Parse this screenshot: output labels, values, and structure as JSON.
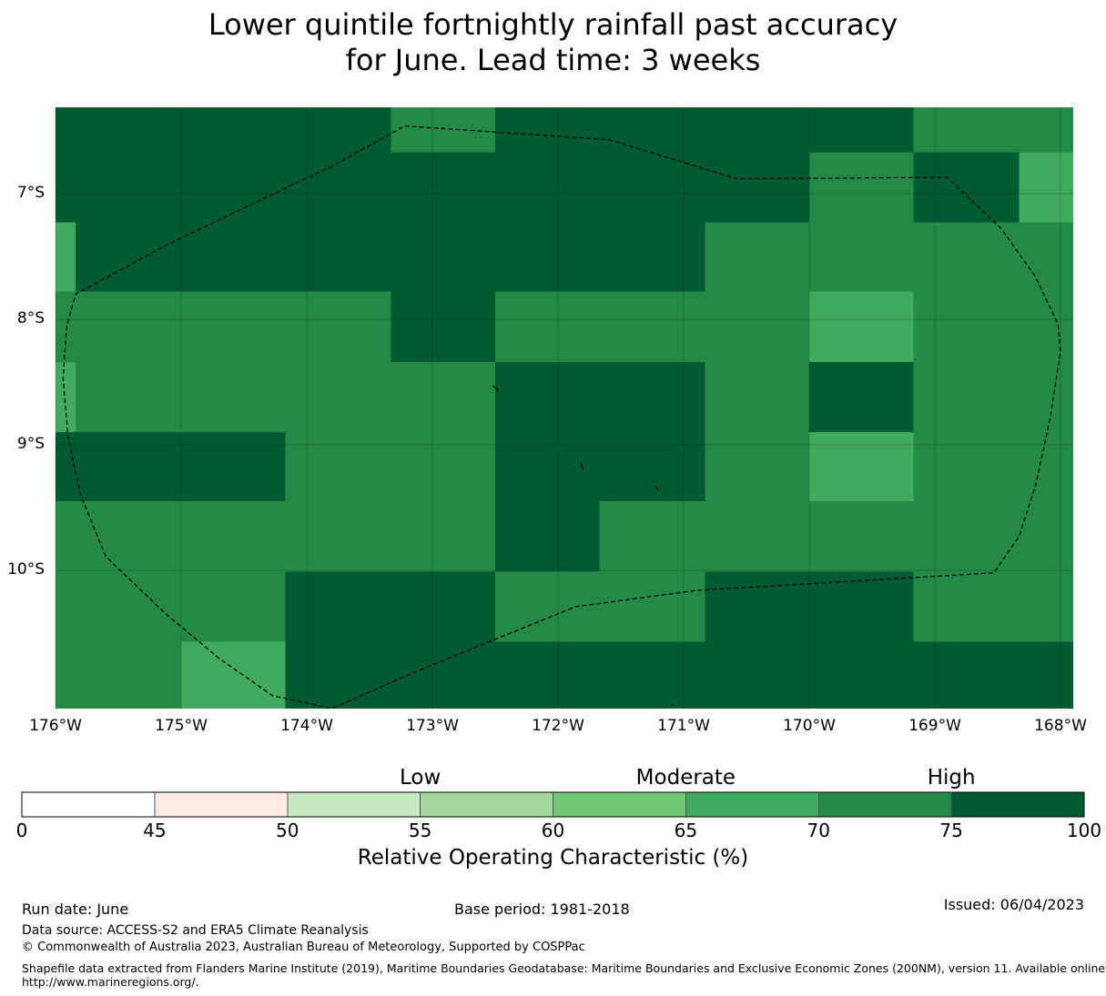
{
  "title": {
    "line1": "Lower quintile fortnightly rainfall past accuracy",
    "line2": "for June. Lead time: 3 weeks"
  },
  "map": {
    "lon_range": [
      -176,
      -167.9
    ],
    "lat_range": [
      -6.3,
      -11.1
    ],
    "x_ticks": [
      {
        "value": -176,
        "label": "176°W"
      },
      {
        "value": -175,
        "label": "175°W"
      },
      {
        "value": -174,
        "label": "174°W"
      },
      {
        "value": -173,
        "label": "173°W"
      },
      {
        "value": -172,
        "label": "172°W"
      },
      {
        "value": -171,
        "label": "171°W"
      },
      {
        "value": -170,
        "label": "170°W"
      },
      {
        "value": -169,
        "label": "169°W"
      },
      {
        "value": -168,
        "label": "168°W"
      }
    ],
    "y_ticks": [
      {
        "value": -7,
        "label": "7°S"
      },
      {
        "value": -8,
        "label": "8°S"
      },
      {
        "value": -9,
        "label": "9°S"
      },
      {
        "value": -10,
        "label": "10°S"
      }
    ],
    "grid_lines": true,
    "cell_colors": {
      "a": "#005a32",
      "b": "#238b45",
      "c": "#41ab5d"
    },
    "cells_legend": "a: 75-100, b: 70-75, c: 65-70",
    "cells": [
      {
        "lon": [
          -176.0,
          -173.33
        ],
        "lat": [
          -6.3,
          -6.67
        ],
        "c": "a"
      },
      {
        "lon": [
          -173.33,
          -172.5
        ],
        "lat": [
          -6.3,
          -6.67
        ],
        "c": "b"
      },
      {
        "lon": [
          -172.5,
          -169.17
        ],
        "lat": [
          -6.3,
          -6.67
        ],
        "c": "a"
      },
      {
        "lon": [
          -169.17,
          -167.9
        ],
        "lat": [
          -6.3,
          -6.67
        ],
        "c": "b"
      },
      {
        "lon": [
          -176.0,
          -170.0
        ],
        "lat": [
          -6.67,
          -7.23
        ],
        "c": "a"
      },
      {
        "lon": [
          -170.0,
          -169.17
        ],
        "lat": [
          -6.67,
          -7.23
        ],
        "c": "b"
      },
      {
        "lon": [
          -169.17,
          -168.33
        ],
        "lat": [
          -6.67,
          -7.23
        ],
        "c": "a"
      },
      {
        "lon": [
          -168.33,
          -167.9
        ],
        "lat": [
          -6.67,
          -7.23
        ],
        "c": "c"
      },
      {
        "lon": [
          -176.0,
          -175.84
        ],
        "lat": [
          -7.23,
          -7.78
        ],
        "c": "c"
      },
      {
        "lon": [
          -175.84,
          -170.83
        ],
        "lat": [
          -7.23,
          -7.78
        ],
        "c": "a"
      },
      {
        "lon": [
          -170.83,
          -167.9
        ],
        "lat": [
          -7.23,
          -7.78
        ],
        "c": "b"
      },
      {
        "lon": [
          -176.0,
          -173.33
        ],
        "lat": [
          -7.78,
          -8.34
        ],
        "c": "b"
      },
      {
        "lon": [
          -173.33,
          -172.5
        ],
        "lat": [
          -7.78,
          -8.34
        ],
        "c": "a"
      },
      {
        "lon": [
          -172.5,
          -170.0
        ],
        "lat": [
          -7.78,
          -8.34
        ],
        "c": "b"
      },
      {
        "lon": [
          -170.0,
          -169.17
        ],
        "lat": [
          -7.78,
          -8.34
        ],
        "c": "c"
      },
      {
        "lon": [
          -169.17,
          -167.9
        ],
        "lat": [
          -7.78,
          -8.34
        ],
        "c": "b"
      },
      {
        "lon": [
          -176.0,
          -175.84
        ],
        "lat": [
          -8.34,
          -8.9
        ],
        "c": "c"
      },
      {
        "lon": [
          -175.84,
          -172.5
        ],
        "lat": [
          -8.34,
          -8.9
        ],
        "c": "b"
      },
      {
        "lon": [
          -172.5,
          -170.83
        ],
        "lat": [
          -8.34,
          -8.9
        ],
        "c": "a"
      },
      {
        "lon": [
          -170.83,
          -170.0
        ],
        "lat": [
          -8.34,
          -8.9
        ],
        "c": "b"
      },
      {
        "lon": [
          -170.0,
          -169.17
        ],
        "lat": [
          -8.34,
          -8.9
        ],
        "c": "a"
      },
      {
        "lon": [
          -169.17,
          -167.9
        ],
        "lat": [
          -8.34,
          -8.9
        ],
        "c": "b"
      },
      {
        "lon": [
          -176.0,
          -174.17
        ],
        "lat": [
          -8.9,
          -9.45
        ],
        "c": "a"
      },
      {
        "lon": [
          -174.17,
          -172.5
        ],
        "lat": [
          -8.9,
          -9.45
        ],
        "c": "b"
      },
      {
        "lon": [
          -172.5,
          -170.83
        ],
        "lat": [
          -8.9,
          -9.45
        ],
        "c": "a"
      },
      {
        "lon": [
          -170.83,
          -170.0
        ],
        "lat": [
          -8.9,
          -9.45
        ],
        "c": "b"
      },
      {
        "lon": [
          -170.0,
          -169.17
        ],
        "lat": [
          -8.9,
          -9.45
        ],
        "c": "c"
      },
      {
        "lon": [
          -169.17,
          -167.9
        ],
        "lat": [
          -8.9,
          -9.45
        ],
        "c": "b"
      },
      {
        "lon": [
          -176.0,
          -172.5
        ],
        "lat": [
          -9.45,
          -10.01
        ],
        "c": "b"
      },
      {
        "lon": [
          -172.5,
          -171.67
        ],
        "lat": [
          -9.45,
          -10.01
        ],
        "c": "a"
      },
      {
        "lon": [
          -171.67,
          -167.9
        ],
        "lat": [
          -9.45,
          -10.01
        ],
        "c": "b"
      },
      {
        "lon": [
          -176.0,
          -174.17
        ],
        "lat": [
          -10.01,
          -10.57
        ],
        "c": "b"
      },
      {
        "lon": [
          -174.17,
          -172.5
        ],
        "lat": [
          -10.01,
          -10.57
        ],
        "c": "a"
      },
      {
        "lon": [
          -172.5,
          -170.83
        ],
        "lat": [
          -10.01,
          -10.57
        ],
        "c": "b"
      },
      {
        "lon": [
          -170.83,
          -169.17
        ],
        "lat": [
          -10.01,
          -10.57
        ],
        "c": "a"
      },
      {
        "lon": [
          -169.17,
          -167.9
        ],
        "lat": [
          -10.01,
          -10.57
        ],
        "c": "b"
      },
      {
        "lon": [
          -176.0,
          -175.0
        ],
        "lat": [
          -10.57,
          -11.1
        ],
        "c": "b"
      },
      {
        "lon": [
          -175.0,
          -174.17
        ],
        "lat": [
          -10.57,
          -11.1
        ],
        "c": "c"
      },
      {
        "lon": [
          -174.17,
          -167.9
        ],
        "lat": [
          -10.57,
          -11.1
        ],
        "c": "a"
      }
    ],
    "eez_boundary": [
      [
        -173.22,
        -6.46
      ],
      [
        -171.59,
        -6.57
      ],
      [
        -170.58,
        -6.88
      ],
      [
        -168.9,
        -6.87
      ],
      [
        -168.47,
        -7.28
      ],
      [
        -168.2,
        -7.66
      ],
      [
        -168.02,
        -8.04
      ],
      [
        -168.0,
        -8.25
      ],
      [
        -168.08,
        -8.78
      ],
      [
        -168.2,
        -9.33
      ],
      [
        -168.33,
        -9.73
      ],
      [
        -168.53,
        -10.02
      ],
      [
        -169.2,
        -10.06
      ],
      [
        -170.9,
        -10.16
      ],
      [
        -171.86,
        -10.29
      ],
      [
        -172.7,
        -10.63
      ],
      [
        -173.16,
        -10.82
      ],
      [
        -173.8,
        -11.1
      ],
      [
        -174.27,
        -11.0
      ],
      [
        -174.7,
        -10.7
      ],
      [
        -175.13,
        -10.34
      ],
      [
        -175.6,
        -9.89
      ],
      [
        -175.8,
        -9.4
      ],
      [
        -175.9,
        -8.94
      ],
      [
        -175.94,
        -8.47
      ],
      [
        -175.91,
        -8.05
      ],
      [
        -175.84,
        -7.8
      ],
      [
        -175.1,
        -7.4
      ],
      [
        -173.8,
        -6.78
      ],
      [
        -173.22,
        -6.46
      ]
    ],
    "islands": [
      [
        [
          -172.52,
          -8.53
        ],
        [
          -172.48,
          -8.56
        ],
        [
          -172.48,
          -8.58
        ]
      ],
      [
        [
          -171.82,
          -9.14
        ],
        [
          -171.8,
          -9.2
        ]
      ],
      [
        [
          -171.23,
          -9.33
        ],
        [
          -171.2,
          -9.36
        ]
      ],
      [
        [
          -171.1,
          -11.07
        ],
        [
          -171.08,
          -11.08
        ]
      ]
    ]
  },
  "colorbar": {
    "categories": [
      {
        "label": "Low",
        "center": 55
      },
      {
        "label": "Moderate",
        "center": 65
      },
      {
        "label": "High",
        "center": 75
      }
    ],
    "bins": [
      {
        "from": 0,
        "to": 45,
        "color": "#ffffff"
      },
      {
        "from": 45,
        "to": 50,
        "color": "#feeae1"
      },
      {
        "from": 50,
        "to": 55,
        "color": "#c7e9c0"
      },
      {
        "from": 55,
        "to": 60,
        "color": "#a1d99b"
      },
      {
        "from": 60,
        "to": 65,
        "color": "#74c476"
      },
      {
        "from": 65,
        "to": 70,
        "color": "#41ab5d"
      },
      {
        "from": 70,
        "to": 75,
        "color": "#238b45"
      },
      {
        "from": 75,
        "to": 100,
        "color": "#005a32"
      }
    ],
    "ticks": [
      "0",
      "45",
      "50",
      "55",
      "60",
      "65",
      "70",
      "75",
      "100"
    ],
    "label": "Relative Operating Characteristic (%)"
  },
  "footer": {
    "run_date": "Run date: June",
    "base_period": "Base period: 1981-2018",
    "issued": "Issued: 06/04/2023",
    "data_source": "Data source: ACCESS-S2 and ERA5 Climate Reanalysis",
    "copyright": "© Commonwealth of Australia 2023, Australian Bureau of Meteorology, Supported by COSPPac",
    "shapefile_line1": "Shapefile data extracted from Flanders Marine Institute (2019), Maritime Boundaries Geodatabase: Maritime Boundaries and Exclusive Economic Zones (200NM), version 11. Available online at",
    "shapefile_line2": "http://www.marineregions.org/."
  }
}
